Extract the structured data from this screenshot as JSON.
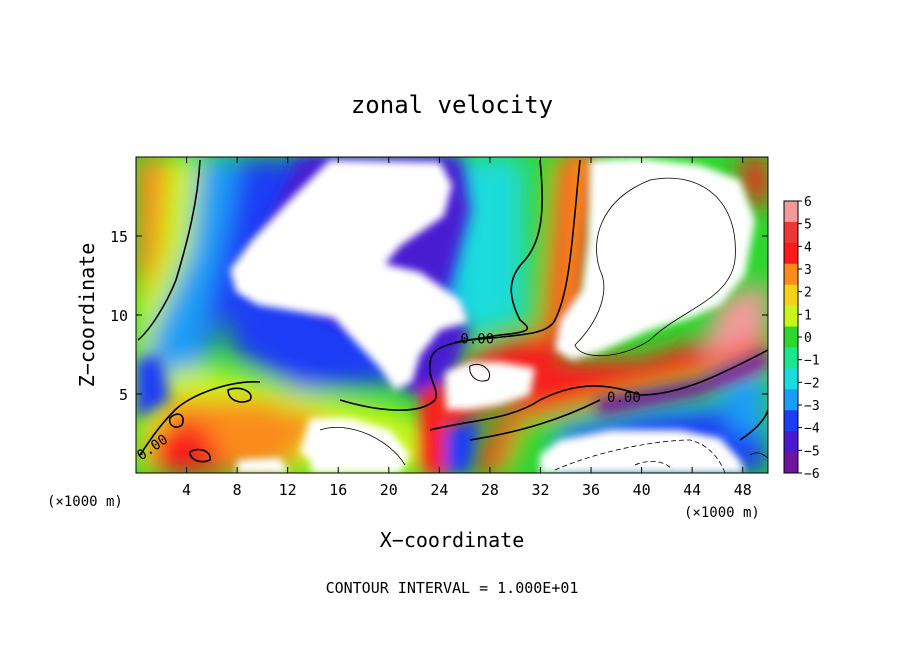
{
  "chart_data": {
    "type": "heatmap",
    "title": "zonal velocity",
    "xlabel": "X−coordinate",
    "ylabel": "Z−coordinate",
    "x_unit_label": "(×1000 m)",
    "y_unit_label": "(×1000 m)",
    "footer": "CONTOUR INTERVAL = 1.000E+01",
    "xlim": [
      0,
      50
    ],
    "ylim": [
      0,
      20
    ],
    "x_ticks": [
      4,
      8,
      12,
      16,
      20,
      24,
      28,
      32,
      36,
      40,
      44,
      48
    ],
    "x_tick_labels": [
      "4",
      "8",
      "12",
      "16",
      "20",
      "24",
      "28",
      "32",
      "36",
      "40",
      "44",
      "48"
    ],
    "y_ticks": [
      5,
      10,
      15
    ],
    "y_tick_labels": [
      "5",
      "10",
      "15"
    ],
    "contour_labels": [
      {
        "text": "0.00",
        "x": 27,
        "y": 8.5
      },
      {
        "text": "0.00",
        "x": 38.6,
        "y": 4.8
      },
      {
        "text": "0.00",
        "x": 1.5,
        "y": 1.7
      }
    ],
    "colorbar": {
      "levels": [
        6,
        5,
        4,
        3,
        2,
        1,
        0,
        -1,
        -2,
        -3,
        -4,
        -5,
        -6
      ],
      "labels": [
        "6",
        "5",
        "4",
        "3",
        "2",
        "1",
        "0",
        "−1",
        "−2",
        "−3",
        "−4",
        "−5",
        "−6"
      ],
      "colors": [
        "#f29a9a",
        "#ee3636",
        "#fa1a1a",
        "#fb8c1a",
        "#f5d21a",
        "#c8f51a",
        "#2fd62f",
        "#1ae68c",
        "#1adcdc",
        "#1a9ef5",
        "#1a3ef5",
        "#4a1ad2",
        "#6e14a0"
      ]
    },
    "field_note": "positive (red) and negative (blue/purple) zonal velocity; white = beyond colorbar range"
  }
}
